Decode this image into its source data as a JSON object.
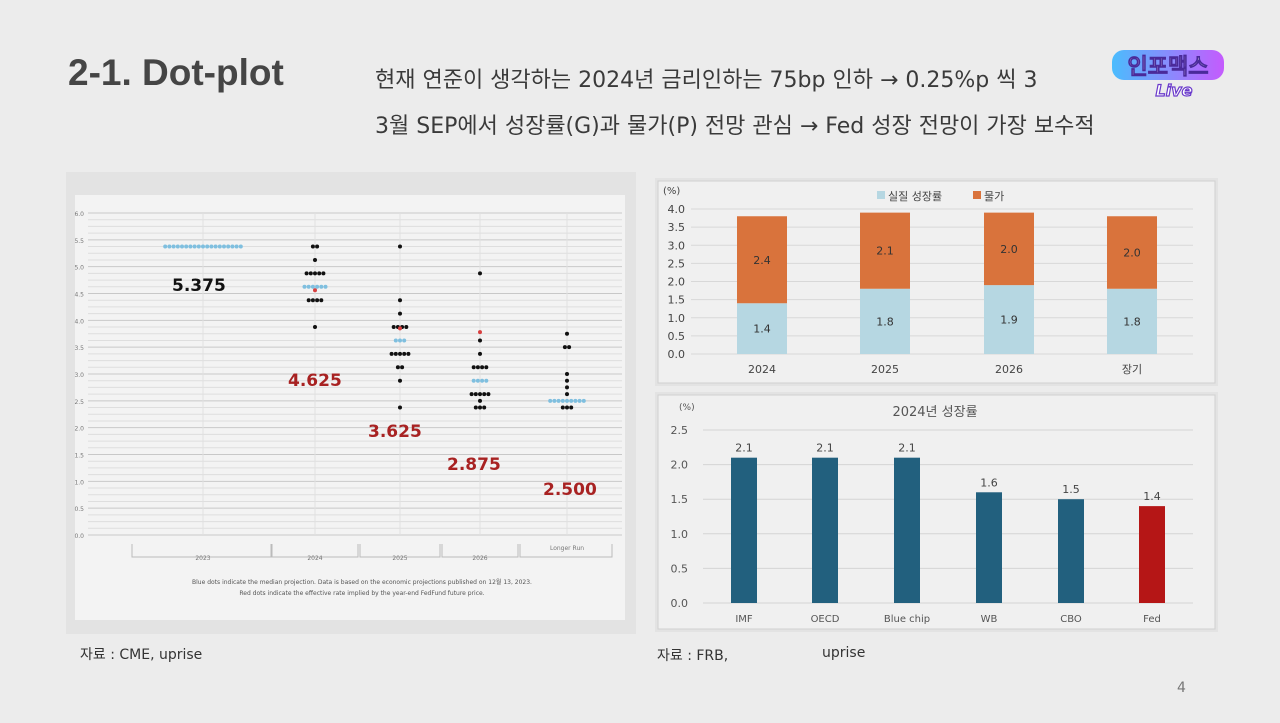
{
  "slide": {
    "title": "2-1. Dot-plot",
    "lines": [
      "현재 연준이 생각하는 2024년 금리인하는 75bp 인하 → 0.25%p 씩 3",
      "3월 SEP에서 성장률(G)과 물가(P) 전망 관심 → Fed 성장 전망이 가장 보수적"
    ],
    "logo_text": [
      "인포맥스",
      "Live"
    ],
    "source_left": "자료 : CME, uprise",
    "source_right_1": "자료 : FRB,",
    "source_right_2": "uprise",
    "page_number": "4"
  },
  "chart_data": [
    {
      "type": "scatter",
      "yticks": [
        "0.0",
        "0.5",
        "1.0",
        "1.5",
        "2.0",
        "2.5",
        "3.0",
        "3.5",
        "4.0",
        "4.5",
        "5.0",
        "5.5",
        "6.0"
      ],
      "ylim": [
        0,
        6
      ],
      "categories": [
        "2023",
        "2024",
        "2025",
        "2026",
        "Longer Run"
      ],
      "dots": [
        [
          {
            "y": 5.375,
            "n": 19,
            "c": "blue"
          }
        ],
        [
          {
            "y": 5.375,
            "n": 2
          },
          {
            "y": 5.125,
            "n": 1
          },
          {
            "y": 4.875,
            "n": 5
          },
          {
            "y": 4.625,
            "n": 6,
            "c": "blue"
          },
          {
            "y": 4.56,
            "n": 1,
            "c": "red"
          },
          {
            "y": 4.375,
            "n": 4
          },
          {
            "y": 3.875,
            "n": 1
          }
        ],
        [
          {
            "y": 5.375,
            "n": 1
          },
          {
            "y": 4.375,
            "n": 1
          },
          {
            "y": 4.125,
            "n": 1
          },
          {
            "y": 3.875,
            "n": 4
          },
          {
            "y": 3.85,
            "n": 1,
            "c": "red"
          },
          {
            "y": 3.625,
            "n": 3,
            "c": "blue"
          },
          {
            "y": 3.375,
            "n": 5
          },
          {
            "y": 3.125,
            "n": 2
          },
          {
            "y": 2.875,
            "n": 1
          },
          {
            "y": 2.375,
            "n": 1
          }
        ],
        [
          {
            "y": 4.875,
            "n": 1
          },
          {
            "y": 3.78,
            "n": 1,
            "c": "red"
          },
          {
            "y": 3.625,
            "n": 1
          },
          {
            "y": 3.375,
            "n": 1
          },
          {
            "y": 3.125,
            "n": 4
          },
          {
            "y": 2.875,
            "n": 4,
            "c": "blue"
          },
          {
            "y": 2.625,
            "n": 5
          },
          {
            "y": 2.5,
            "n": 1
          },
          {
            "y": 2.375,
            "n": 3
          }
        ],
        [
          {
            "y": 3.75,
            "n": 1
          },
          {
            "y": 3.5,
            "n": 2
          },
          {
            "y": 3.0,
            "n": 1
          },
          {
            "y": 2.875,
            "n": 1
          },
          {
            "y": 2.75,
            "n": 1
          },
          {
            "y": 2.625,
            "n": 1
          },
          {
            "y": 2.5,
            "n": 9,
            "c": "blue"
          },
          {
            "y": 2.375,
            "n": 3
          }
        ]
      ],
      "annotations": [
        "5.375",
        "4.625",
        "3.625",
        "2.875",
        "2.500"
      ],
      "annotation_colors": [
        "#111111",
        "#a82222",
        "#a82222",
        "#a82222",
        "#a82222"
      ],
      "footnote": [
        "Blue dots indicate the median projection. Data is based on the economic projections published on 12월 13, 2023.",
        "Red dots indicate the effective rate implied by the year-end FedFund future price."
      ],
      "colors": {
        "blue": "#7fbfdf",
        "red": "#d84040",
        "black": "#111111"
      },
      "grid": true
    },
    {
      "type": "bar",
      "stacked": true,
      "unit": "(%)",
      "categories": [
        "2024",
        "2025",
        "2026",
        "장기"
      ],
      "series": [
        {
          "name": "실질 성장률",
          "values": [
            1.4,
            1.8,
            1.9,
            1.8
          ],
          "color": "#b6d7e2"
        },
        {
          "name": "물가",
          "values": [
            2.4,
            2.1,
            2.0,
            2.0
          ],
          "color": "#d9733c"
        }
      ],
      "yticks": [
        "0.0",
        "0.5",
        "1.0",
        "1.5",
        "2.0",
        "2.5",
        "3.0",
        "3.5",
        "4.0"
      ],
      "ylim": [
        0,
        4
      ],
      "legend": "top-center",
      "grid": true
    },
    {
      "type": "bar",
      "title": "2024년 성장률",
      "unit": "(%)",
      "categories": [
        "IMF",
        "OECD",
        "Blue chip",
        "WB",
        "CBO",
        "Fed"
      ],
      "values": [
        2.1,
        2.1,
        2.1,
        1.6,
        1.5,
        1.4
      ],
      "value_labels": [
        "2.1",
        "2.1",
        "2.1",
        "1.6",
        "1.5",
        "1.4"
      ],
      "colors": [
        "#22607e",
        "#22607e",
        "#22607e",
        "#22607e",
        "#22607e",
        "#b51616"
      ],
      "yticks": [
        "0.0",
        "0.5",
        "1.0",
        "1.5",
        "2.0",
        "2.5"
      ],
      "ylim": [
        0,
        2.5
      ],
      "grid": true
    }
  ]
}
